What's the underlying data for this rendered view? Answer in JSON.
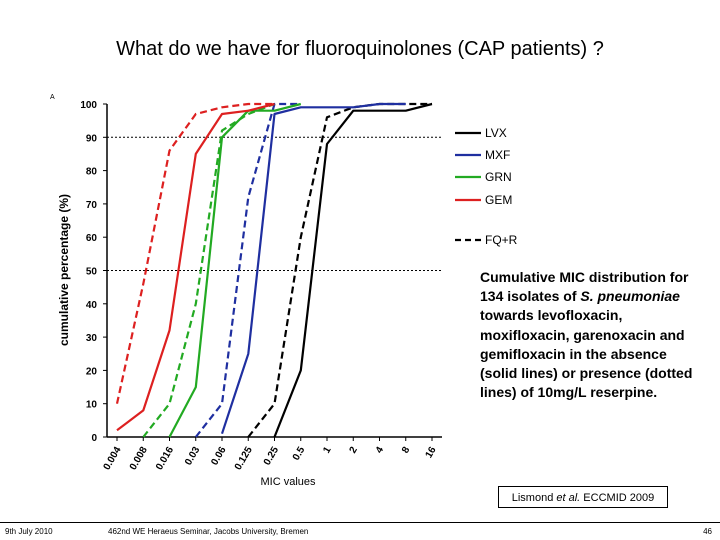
{
  "slide": {
    "title": "What do we have for fluoroquinolones (CAP patients) ?",
    "caption_parts": {
      "p1": "Cumulative MIC distribution for 134 isolates of ",
      "p2": "S. pneumoniae",
      "p3": " towards levofloxacin, moxifloxacin, garenoxacin and gemifloxacin in the absence (solid lines) or presence (dotted lines) of 10mg/L reserpine."
    },
    "citation": {
      "author": "Lismond ",
      "etal": "et al.",
      "rest": " ECCMID 2009"
    },
    "footer": {
      "date": "9th July 2010",
      "event": "462nd WE Heraeus Seminar, Jacobs University, Bremen",
      "page": "46"
    }
  },
  "colors": {
    "LVX": "#000000",
    "MXF": "#1f2fa0",
    "GRN": "#22aa22",
    "GEM": "#dd2020"
  },
  "chart_data": {
    "type": "line",
    "panel_label": "A",
    "xlabel": "MIC values",
    "ylabel": "cumulative percentage (%)",
    "x_ticks": [
      "0.004",
      "0.008",
      "0.016",
      "0.03",
      "0.06",
      "0.125",
      "0.25",
      "0.5",
      "1",
      "2",
      "4",
      "8",
      "16"
    ],
    "y_ticks": [
      0,
      10,
      20,
      30,
      40,
      50,
      60,
      70,
      80,
      90,
      100
    ],
    "ylim": [
      0,
      100
    ],
    "grid": "dashed horizontal lines at 50 and 90",
    "legend": {
      "position": "right",
      "entries": [
        {
          "label": "LVX",
          "style": "solid",
          "color": "#000000"
        },
        {
          "label": "MXF",
          "style": "solid",
          "color": "#1f2fa0"
        },
        {
          "label": "GRN",
          "style": "solid",
          "color": "#22aa22"
        },
        {
          "label": "GEM",
          "style": "solid",
          "color": "#dd2020"
        },
        {
          "label": "FQ+R",
          "style": "dashed",
          "color": "#000000"
        }
      ]
    },
    "series": [
      {
        "drug": "LVX",
        "style": "solid",
        "points": [
          [
            "0.25",
            0
          ],
          [
            "0.5",
            20
          ],
          [
            "1",
            88
          ],
          [
            "2",
            98
          ],
          [
            "4",
            98
          ],
          [
            "8",
            98
          ],
          [
            "16",
            100
          ]
        ]
      },
      {
        "drug": "LVX",
        "style": "dashed",
        "points": [
          [
            "0.125",
            0
          ],
          [
            "0.25",
            10
          ],
          [
            "0.5",
            60
          ],
          [
            "1",
            96
          ],
          [
            "2",
            99
          ],
          [
            "4",
            100
          ],
          [
            "8",
            100
          ],
          [
            "16",
            100
          ]
        ]
      },
      {
        "drug": "MXF",
        "style": "solid",
        "points": [
          [
            "0.06",
            1
          ],
          [
            "0.125",
            25
          ],
          [
            "0.25",
            97
          ],
          [
            "0.5",
            99
          ],
          [
            "1",
            99
          ],
          [
            "2",
            99
          ],
          [
            "4",
            100
          ],
          [
            "8",
            100
          ]
        ]
      },
      {
        "drug": "MXF",
        "style": "dashed",
        "points": [
          [
            "0.03",
            0
          ],
          [
            "0.06",
            10
          ],
          [
            "0.125",
            72
          ],
          [
            "0.25",
            100
          ],
          [
            "0.5",
            100
          ]
        ]
      },
      {
        "drug": "GRN",
        "style": "solid",
        "points": [
          [
            "0.016",
            0
          ],
          [
            "0.03",
            15
          ],
          [
            "0.06",
            90
          ],
          [
            "0.125",
            98
          ],
          [
            "0.25",
            98
          ],
          [
            "0.5",
            100
          ]
        ]
      },
      {
        "drug": "GRN",
        "style": "dashed",
        "points": [
          [
            "0.008",
            0
          ],
          [
            "0.016",
            10
          ],
          [
            "0.03",
            40
          ],
          [
            "0.06",
            92
          ],
          [
            "0.125",
            97
          ],
          [
            "0.25",
            100
          ]
        ]
      },
      {
        "drug": "GEM",
        "style": "solid",
        "points": [
          [
            "0.004",
            2
          ],
          [
            "0.008",
            8
          ],
          [
            "0.016",
            32
          ],
          [
            "0.03",
            85
          ],
          [
            "0.06",
            97
          ],
          [
            "0.125",
            98
          ],
          [
            "0.25",
            100
          ]
        ]
      },
      {
        "drug": "GEM",
        "style": "dashed",
        "points": [
          [
            "0.004",
            10
          ],
          [
            "0.008",
            46
          ],
          [
            "0.016",
            86
          ],
          [
            "0.03",
            97
          ],
          [
            "0.06",
            99
          ],
          [
            "0.125",
            100
          ],
          [
            "0.25",
            100
          ]
        ]
      }
    ]
  }
}
